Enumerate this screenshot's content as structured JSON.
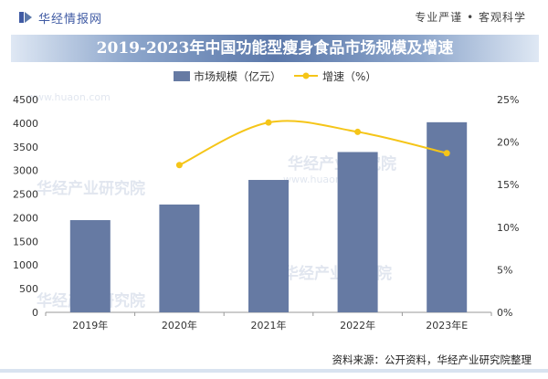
{
  "header": {
    "brand_name": "华经情报网",
    "slogan": "专业严谨 • 客观科学"
  },
  "watermark": {
    "text": "华经产业研究院",
    "url": "www.huaon.com"
  },
  "source": "资料来源：公开资料，华经产业研究院整理",
  "colors": {
    "bar": "#667aa3",
    "line": "#f5c518",
    "title_bar": "#5b78aa",
    "brand": "#3f5aa3"
  },
  "chart_data": {
    "type": "bar",
    "title": "2019-2023年中国功能型瘦身食品市场规模及增速",
    "categories": [
      "2019年",
      "2020年",
      "2021年",
      "2022年",
      "2023年E"
    ],
    "series": [
      {
        "name": "市场规模（亿元）",
        "type": "bar",
        "axis": "left",
        "values": [
          1950,
          2280,
          2800,
          3390,
          4020
        ]
      },
      {
        "name": "增速（%）",
        "type": "line",
        "axis": "right",
        "values": [
          null,
          17.3,
          22.3,
          21.2,
          18.7
        ]
      }
    ],
    "y_left": {
      "min": 0,
      "max": 4500,
      "step": 500,
      "ticks": [
        "0",
        "500",
        "1000",
        "1500",
        "2000",
        "2500",
        "3000",
        "3500",
        "4000",
        "4500"
      ]
    },
    "y_right": {
      "min": 0,
      "max": 25,
      "step": 5,
      "ticks": [
        "0%",
        "5%",
        "10%",
        "15%",
        "20%",
        "25%"
      ]
    },
    "grid": false,
    "legend_position": "top-center"
  }
}
